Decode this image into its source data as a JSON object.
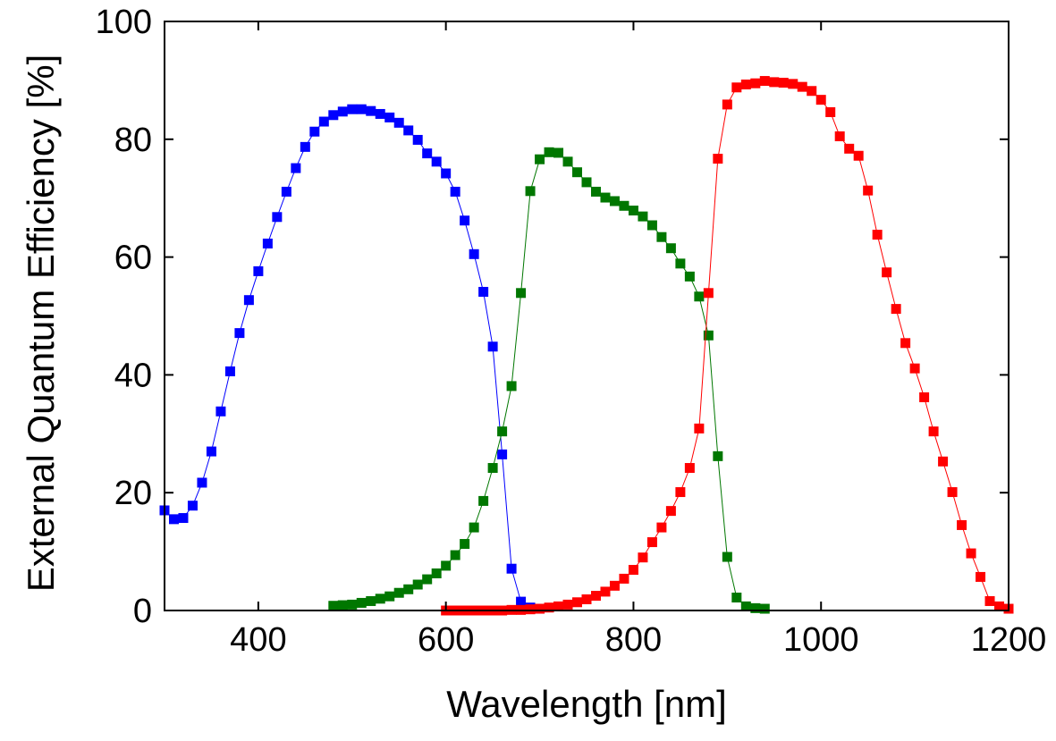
{
  "chart_data": {
    "type": "line",
    "xlabel": "Wavelength [nm]",
    "ylabel": "External Quantum Efficiency [%]",
    "xlim": [
      300,
      1200
    ],
    "ylim": [
      0,
      100
    ],
    "xticks": [
      400,
      600,
      800,
      1000,
      1200
    ],
    "yticks": [
      0,
      20,
      40,
      60,
      80,
      100
    ],
    "grid": false,
    "legend": "none",
    "series": [
      {
        "color": "#0000ff",
        "marker": "square",
        "x": [
          300,
          310,
          320,
          330,
          340,
          350,
          360,
          370,
          380,
          390,
          400,
          410,
          420,
          430,
          440,
          450,
          460,
          470,
          480,
          490,
          500,
          510,
          520,
          530,
          540,
          550,
          560,
          570,
          580,
          590,
          600,
          610,
          620,
          630,
          640,
          650,
          660,
          670,
          680,
          690,
          700
        ],
        "y": [
          17,
          15.5,
          15.7,
          17.8,
          21.7,
          27,
          33.8,
          40.6,
          47.1,
          52.7,
          57.6,
          62.3,
          66.8,
          71.1,
          75.1,
          78.7,
          81.3,
          83,
          84.1,
          84.7,
          85.1,
          85.1,
          84.8,
          84.3,
          83.7,
          82.8,
          81.5,
          79.9,
          77.6,
          76.2,
          74.2,
          71.1,
          66.2,
          60.5,
          54.1,
          44.8,
          26.5,
          7.1,
          1.5,
          0.5,
          0.3
        ]
      },
      {
        "color": "#007700",
        "marker": "square",
        "x": [
          480,
          490,
          500,
          510,
          520,
          530,
          540,
          550,
          560,
          570,
          580,
          590,
          600,
          610,
          620,
          630,
          640,
          650,
          660,
          670,
          680,
          690,
          700,
          710,
          720,
          730,
          740,
          750,
          760,
          770,
          780,
          790,
          800,
          810,
          820,
          830,
          840,
          850,
          860,
          870,
          880,
          890,
          900,
          910,
          920,
          930,
          940
        ],
        "y": [
          0.8,
          0.9,
          1,
          1.3,
          1.6,
          2,
          2.4,
          3,
          3.6,
          4.4,
          5.3,
          6.3,
          7.6,
          9.4,
          11.3,
          14.1,
          18.6,
          24.2,
          30.4,
          38.1,
          53.9,
          71.2,
          76.6,
          77.8,
          77.7,
          76.2,
          74.4,
          72.7,
          71.1,
          70.1,
          69.5,
          68.7,
          67.9,
          66.9,
          65.4,
          63.4,
          61.5,
          58.9,
          56.7,
          53.3,
          46.7,
          26.2,
          9.1,
          2.2,
          0.7,
          0.4,
          0.3
        ]
      },
      {
        "color": "#ff0000",
        "marker": "square",
        "x": [
          600,
          610,
          620,
          630,
          640,
          650,
          660,
          670,
          680,
          690,
          700,
          710,
          720,
          730,
          740,
          750,
          760,
          770,
          780,
          790,
          800,
          810,
          820,
          830,
          840,
          850,
          860,
          870,
          880,
          890,
          900,
          910,
          920,
          930,
          940,
          950,
          960,
          970,
          980,
          990,
          1000,
          1010,
          1020,
          1030,
          1040,
          1050,
          1060,
          1070,
          1080,
          1090,
          1100,
          1110,
          1120,
          1130,
          1140,
          1150,
          1160,
          1170,
          1180,
          1190,
          1200
        ],
        "y": [
          0,
          0,
          0,
          0,
          0,
          0,
          0,
          0.1,
          0.1,
          0.2,
          0.3,
          0.5,
          0.7,
          1,
          1.4,
          1.9,
          2.5,
          3.2,
          4.2,
          5.4,
          6.9,
          9,
          11.6,
          14.1,
          16.9,
          20.1,
          24.2,
          30.9,
          53.9,
          76.7,
          85.9,
          88.8,
          89.3,
          89.5,
          89.9,
          89.7,
          89.6,
          89.4,
          88.9,
          88.2,
          86.7,
          84.6,
          80.5,
          78.4,
          77.2,
          71.3,
          63.8,
          57.4,
          51.2,
          45.4,
          41.1,
          36.2,
          30.4,
          25.3,
          20.1,
          14.5,
          9.7,
          5.7,
          1.6,
          0.7,
          0.3
        ]
      }
    ]
  }
}
